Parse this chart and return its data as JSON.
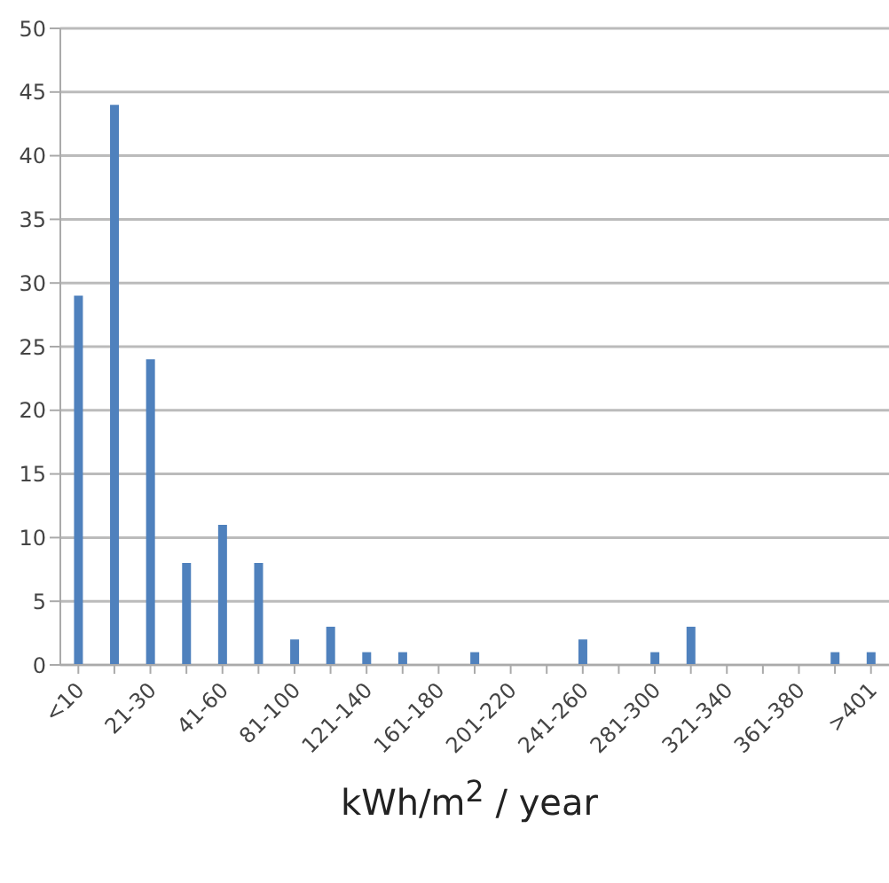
{
  "chart_data": {
    "type": "bar",
    "xlabel": "kWh/m$^{2}$ / year",
    "categories": [
      "<10",
      null,
      "21-30",
      null,
      "41-60",
      null,
      "81-100",
      null,
      "121-140",
      null,
      "161-180",
      null,
      "201-220",
      null,
      "241-260",
      null,
      "281-300",
      null,
      "321-340",
      null,
      "361-380",
      null,
      ">401"
    ],
    "values": [
      29,
      44,
      24,
      8,
      11,
      8,
      2,
      3,
      1,
      1,
      0,
      1,
      0,
      0,
      2,
      0,
      1,
      3,
      0,
      0,
      0,
      1,
      1
    ],
    "color": "#4f81bd",
    "ylim": [
      0,
      50
    ],
    "yticks": [
      0,
      5,
      10,
      15,
      20,
      25,
      30,
      35,
      40,
      45,
      50
    ],
    "grid": "y",
    "legend": false
  }
}
